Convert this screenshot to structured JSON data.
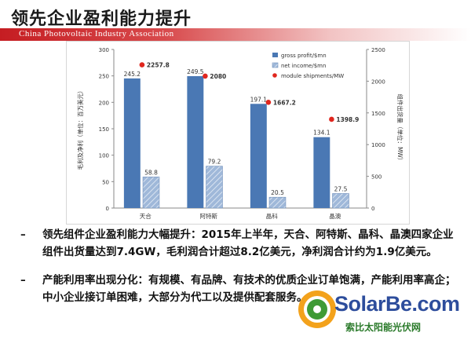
{
  "slide": {
    "title": "领先企业盈利能力提升",
    "subtitle_band": "China Photovoltaic Industry Association"
  },
  "chart_data": {
    "type": "bar",
    "categories": [
      "天合",
      "阿特斯",
      "晶科",
      "晶澳"
    ],
    "series": [
      {
        "name": "gross profit/$mn",
        "values": [
          245.2,
          249.5,
          197.1,
          134.1
        ],
        "color": "#4a78b4",
        "axis": "left"
      },
      {
        "name": "net income/$mn",
        "values": [
          58.8,
          79.2,
          20.5,
          27.5
        ],
        "color": "#9fb8d9",
        "axis": "left"
      },
      {
        "name": "module shipments/MW",
        "values": [
          2257.8,
          2080,
          1667.2,
          1398.9
        ],
        "color": "#e0261e",
        "axis": "right",
        "kind": "scatter"
      }
    ],
    "ylabel": "毛利及净利（单位：百万美元）",
    "y2label": "组件出货量（单位：MW）",
    "ylim": [
      0,
      300
    ],
    "y2lim": [
      0,
      2500
    ],
    "yticks": [
      0,
      50,
      100,
      150,
      200,
      250,
      300
    ],
    "y2ticks": [
      0,
      500,
      1000,
      1500,
      2000,
      2500
    ],
    "legend_position": "top-right"
  },
  "bullets": [
    "领先组件企业盈利能力大幅提升：2015年上半年，天合、阿特斯、晶科、晶澳四家企业组件出货量达到7.4GW，毛利润合计超过8.2亿美元，净利润合计约为1.9亿美元。",
    "产能利用率出现分化：有规模、有品牌、有技术的优质企业订单饱满，产能利用率高企；中小企业接订单困难，大部分为代工以及提供配套服务。"
  ],
  "bullet_marker": "–",
  "logo": {
    "name": "SolarBe.com",
    "tagline": "索比太阳能光伏网"
  }
}
